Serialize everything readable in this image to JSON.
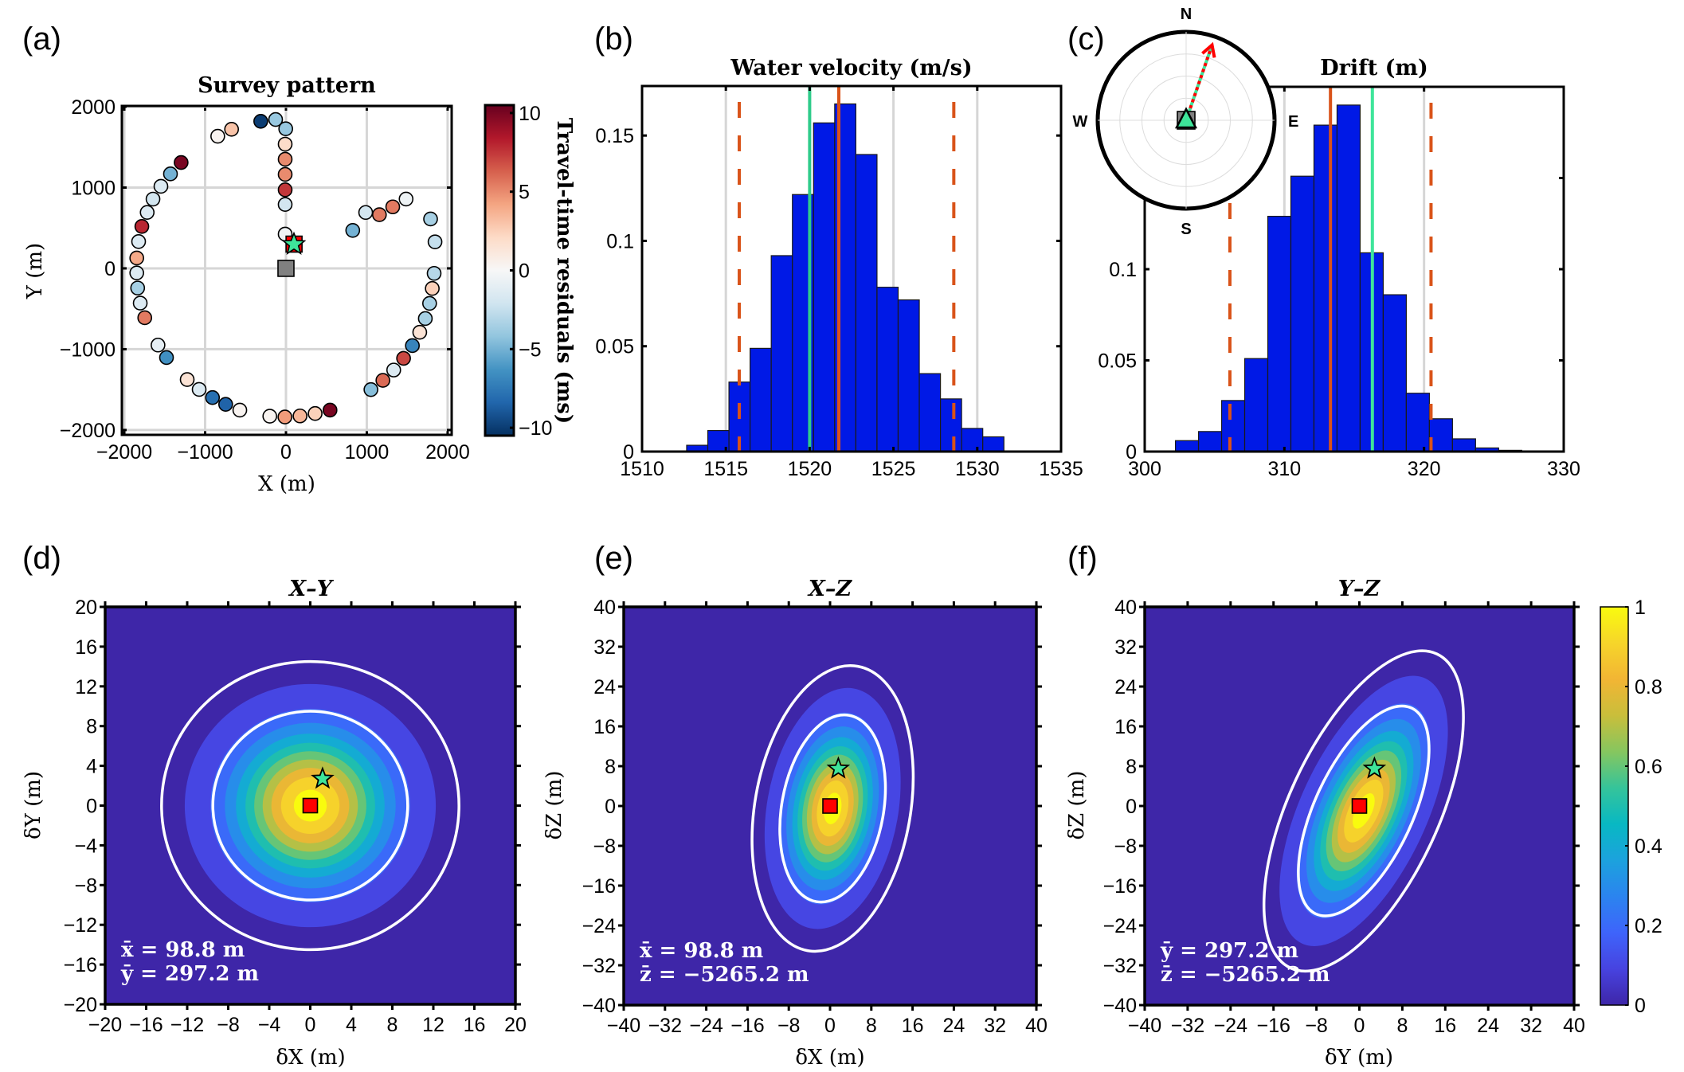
{
  "chart_data": [
    {
      "id": "a",
      "panel_label": "(a)",
      "type": "scatter",
      "title": "Survey pattern",
      "xlabel": "X (m)",
      "ylabel": "Y (m)",
      "xlim": [
        -2030,
        2050
      ],
      "ylim": [
        -2060,
        2010
      ],
      "xticks": [
        -2000,
        -1000,
        0,
        1000,
        2000
      ],
      "xtick_labels": [
        "−2000",
        "−1000",
        "0",
        "1000",
        "2000"
      ],
      "yticks": [
        -2000,
        -1000,
        0,
        1000,
        2000
      ],
      "ytick_labels": [
        "−2000",
        "−1000",
        "0",
        "1000",
        "2000"
      ],
      "grid": true,
      "colorbar": {
        "label": "Travel-time residuals (ms)",
        "range": [
          -10.5,
          10.5
        ],
        "ticks": [
          -10,
          -5,
          0,
          5,
          10
        ],
        "tick_labels": [
          "−10",
          "−5",
          "0",
          "5",
          "10"
        ],
        "colormap": "RdBu_r",
        "stops": [
          "#053061",
          "#2166ac",
          "#4393c3",
          "#92c5de",
          "#d1e5f0",
          "#f7f7f7",
          "#fddbc7",
          "#f4a582",
          "#d6604d",
          "#b2182b",
          "#67001f"
        ]
      },
      "stations": [
        {
          "x": -312,
          "y": 1820,
          "residual": -10
        },
        {
          "x": -128,
          "y": 1842,
          "residual": -4
        },
        {
          "x": -3,
          "y": 1727,
          "residual": -4
        },
        {
          "x": -10,
          "y": 1537,
          "residual": 2
        },
        {
          "x": -10,
          "y": 1350,
          "residual": 5
        },
        {
          "x": -10,
          "y": 1163,
          "residual": 5
        },
        {
          "x": -10,
          "y": 972,
          "residual": 7.5
        },
        {
          "x": -10,
          "y": 791,
          "residual": -2
        },
        {
          "x": -10,
          "y": 424,
          "residual": -0.5
        },
        {
          "x": -844,
          "y": 1635,
          "residual": 0.3
        },
        {
          "x": -673,
          "y": 1721,
          "residual": 3
        },
        {
          "x": -1297,
          "y": 1310,
          "residual": 10
        },
        {
          "x": -1429,
          "y": 1169,
          "residual": -5
        },
        {
          "x": -1547,
          "y": 1015,
          "residual": -1.5
        },
        {
          "x": -1645,
          "y": 857,
          "residual": -2
        },
        {
          "x": -1717,
          "y": 693,
          "residual": -1.5
        },
        {
          "x": -1783,
          "y": 519,
          "residual": 8
        },
        {
          "x": -1823,
          "y": 332,
          "residual": -1.5
        },
        {
          "x": -1846,
          "y": 128,
          "residual": 4
        },
        {
          "x": -1846,
          "y": -56,
          "residual": -1.5
        },
        {
          "x": -1835,
          "y": -243,
          "residual": -3.5
        },
        {
          "x": -1803,
          "y": -430,
          "residual": -1.5
        },
        {
          "x": -1747,
          "y": -611,
          "residual": 5.5
        },
        {
          "x": -1583,
          "y": -949,
          "residual": -1
        },
        {
          "x": -1478,
          "y": -1103,
          "residual": -6.5
        },
        {
          "x": -1222,
          "y": -1376,
          "residual": 1.5
        },
        {
          "x": -1074,
          "y": -1498,
          "residual": -1.5
        },
        {
          "x": -909,
          "y": -1599,
          "residual": -8
        },
        {
          "x": -746,
          "y": -1682,
          "residual": -8.5
        },
        {
          "x": -571,
          "y": -1754,
          "residual": 0.3
        },
        {
          "x": -200,
          "y": -1829,
          "residual": 0.3
        },
        {
          "x": -13,
          "y": -1839,
          "residual": 4.5
        },
        {
          "x": 174,
          "y": -1826,
          "residual": 3.5
        },
        {
          "x": 361,
          "y": -1796,
          "residual": 2.5
        },
        {
          "x": 545,
          "y": -1754,
          "residual": 10
        },
        {
          "x": 1051,
          "y": -1500,
          "residual": -4.5
        },
        {
          "x": 1199,
          "y": -1386,
          "residual": 6
        },
        {
          "x": 1333,
          "y": -1258,
          "residual": -1.5
        },
        {
          "x": 1455,
          "y": -1113,
          "residual": 7
        },
        {
          "x": 1564,
          "y": -956,
          "residual": -7
        },
        {
          "x": 1655,
          "y": -791,
          "residual": 1.5
        },
        {
          "x": 1724,
          "y": -621,
          "residual": -3.5
        },
        {
          "x": 1777,
          "y": -433,
          "residual": -3.5
        },
        {
          "x": 1810,
          "y": -249,
          "residual": 2.5
        },
        {
          "x": 1833,
          "y": -62,
          "residual": -3
        },
        {
          "x": 1844,
          "y": 328,
          "residual": -2.5
        },
        {
          "x": 1789,
          "y": 611,
          "residual": -3.5
        },
        {
          "x": 826,
          "y": 470,
          "residual": -5
        },
        {
          "x": 986,
          "y": 692,
          "residual": -2
        },
        {
          "x": 1156,
          "y": 664,
          "residual": 5.5
        },
        {
          "x": 1321,
          "y": 761,
          "residual": 5.5
        },
        {
          "x": 1486,
          "y": 858,
          "residual": -0.5
        }
      ],
      "markers": [
        {
          "kind": "square",
          "name": "reference-position",
          "x": 0,
          "y": 0,
          "color": "#808080"
        },
        {
          "kind": "square",
          "name": "estimated-position",
          "x": 100,
          "y": 300,
          "color": "#ff0000"
        },
        {
          "kind": "star",
          "name": "true-position",
          "x": 99,
          "y": 297,
          "color": "#3ee59a"
        }
      ]
    },
    {
      "id": "b",
      "panel_label": "(b)",
      "type": "bar",
      "title": "Water velocity (m/s)",
      "xlim": [
        1510,
        1535
      ],
      "ylim": [
        0,
        0.1735
      ],
      "xticks": [
        1510,
        1515,
        1520,
        1525,
        1530,
        1535
      ],
      "xtick_labels": [
        "1510",
        "1515",
        "1520",
        "1525",
        "1530",
        "1535"
      ],
      "yticks": [
        0,
        0.05,
        0.1,
        0.15
      ],
      "ytick_labels": [
        "0",
        "0.05",
        "0.1",
        "0.15"
      ],
      "grid_x": [
        1515,
        1520,
        1525,
        1530
      ],
      "bin_start": 1512.66,
      "bin_width": 1.262,
      "values": [
        0.003,
        0.01,
        0.033,
        0.049,
        0.093,
        0.122,
        0.156,
        0.165,
        0.141,
        0.078,
        0.072,
        0.037,
        0.025,
        0.011,
        0.007
      ],
      "bar_color": "#0019e6",
      "lines": [
        {
          "name": "true-value-line",
          "x": 1520.0,
          "color": "#2ecc8a",
          "style": "solid"
        },
        {
          "name": "mean-line",
          "x": 1521.74,
          "color": "#d95319",
          "style": "solid"
        },
        {
          "name": "lower-bound-line",
          "x": 1515.8,
          "color": "#d95319",
          "style": "dashed"
        },
        {
          "name": "upper-bound-line",
          "x": 1528.6,
          "color": "#d95319",
          "style": "dashed"
        }
      ]
    },
    {
      "id": "c",
      "panel_label": "(c)",
      "type": "bar",
      "title": "Drift (m)",
      "xlim": [
        300,
        330
      ],
      "ylim": [
        0,
        0.2
      ],
      "xticks": [
        300,
        310,
        320,
        330
      ],
      "xtick_labels": [
        "300",
        "310",
        "320",
        "330"
      ],
      "yticks": [
        0,
        0.05,
        0.1,
        0.15
      ],
      "ytick_labels": [
        "0",
        "0.05",
        "0.1",
        ""
      ],
      "grid_x": [
        310,
        320
      ],
      "bin_start": 302.2,
      "bin_width": 1.653,
      "values": [
        0.006,
        0.011,
        0.028,
        0.051,
        0.129,
        0.151,
        0.179,
        0.19,
        0.109,
        0.086,
        0.032,
        0.018,
        0.007,
        0.002,
        0.0007
      ],
      "bar_color": "#0019e6",
      "lines": [
        {
          "name": "mean-line",
          "x": 313.3,
          "color": "#d95319",
          "style": "solid"
        },
        {
          "name": "true-value-line",
          "x": 316.3,
          "color": "#3ee59a",
          "style": "solid"
        },
        {
          "name": "lower-bound-line",
          "x": 306.1,
          "color": "#d95319",
          "style": "dashed"
        },
        {
          "name": "upper-bound-line",
          "x": 320.5,
          "color": "#d95319",
          "style": "dashed"
        }
      ],
      "compass": {
        "labels": {
          "N": "N",
          "S": "S",
          "E": "E",
          "W": "W"
        },
        "drift_azimuth_deg": 19,
        "arrow_colors": [
          "#ff0000",
          "#3ee59a"
        ]
      }
    },
    {
      "id": "d",
      "panel_label": "(d)",
      "type": "heatmap",
      "title": "X–Y",
      "xlabel": "δX (m)",
      "ylabel": "δY (m)",
      "xlim": [
        -20,
        20
      ],
      "ylim": [
        -20,
        20
      ],
      "ticks": [
        -20,
        -16,
        -12,
        -8,
        -4,
        0,
        4,
        8,
        12,
        16,
        20
      ],
      "tick_labels": [
        "−20",
        "−16",
        "−12",
        "−8",
        "−4",
        "0",
        "4",
        "8",
        "12",
        "16",
        "20"
      ],
      "ellipse": {
        "sx": 5.0,
        "sy": 5.0,
        "rotation_deg": 0
      },
      "contour_radii_sigma": [
        1.9,
        2.9
      ],
      "star": {
        "x": 1.2,
        "y": 2.7
      },
      "square": {
        "x": 0,
        "y": 0
      },
      "stats": [
        "x̄ = 98.8 m",
        "ȳ = 297.2 m"
      ]
    },
    {
      "id": "e",
      "panel_label": "(e)",
      "type": "heatmap",
      "title": "X–Z",
      "xlabel": "δX (m)",
      "ylabel": "δZ (m)",
      "xlim": [
        -40,
        40
      ],
      "ylim": [
        -40,
        40
      ],
      "ticks": [
        -40,
        -32,
        -24,
        -16,
        -8,
        0,
        8,
        16,
        24,
        32,
        40
      ],
      "tick_labels": [
        "−40",
        "−32",
        "−24",
        "−16",
        "−8",
        "0",
        "8",
        "16",
        "24",
        "32",
        "40"
      ],
      "ellipse": {
        "sx": 5.2,
        "sy": 10.0,
        "rotation_deg": -10,
        "cx": 0.5,
        "cy": -0.5
      },
      "contour_radii_sigma": [
        1.9,
        2.9
      ],
      "star": {
        "x": 1.6,
        "y": 7.5
      },
      "square": {
        "x": 0,
        "y": 0
      },
      "stats": [
        "x̄ = 98.8 m",
        "z̄ = −5265.2 m"
      ]
    },
    {
      "id": "f",
      "panel_label": "(f)",
      "type": "heatmap",
      "title": "Y–Z",
      "xlabel": "δY (m)",
      "ylabel": "δZ (m)",
      "xlim": [
        -40,
        40
      ],
      "ylim": [
        -40,
        40
      ],
      "ticks": [
        -40,
        -32,
        -24,
        -16,
        -8,
        0,
        8,
        16,
        24,
        32,
        40
      ],
      "tick_labels": [
        "−40",
        "−32",
        "−24",
        "−16",
        "−8",
        "0",
        "8",
        "16",
        "24",
        "32",
        "40"
      ],
      "ellipse": {
        "sx": 4.8,
        "sy": 12.0,
        "rotation_deg": -25,
        "cx": 0.8,
        "cy": -1.0
      },
      "contour_radii_sigma": [
        1.9,
        2.9
      ],
      "star": {
        "x": 2.8,
        "y": 7.5
      },
      "square": {
        "x": 0,
        "y": 0
      },
      "stats": [
        "ȳ = 297.2 m",
        "z̄ = −5265.2 m"
      ],
      "colorbar": {
        "range": [
          0,
          1
        ],
        "ticks": [
          0,
          0.2,
          0.4,
          0.6,
          0.8,
          1
        ],
        "tick_labels": [
          "0",
          "0.2",
          "0.4",
          "0.6",
          "0.8",
          "1"
        ],
        "colormap": "parula",
        "stops": [
          "#3e26a8",
          "#4743e0",
          "#3e64fb",
          "#2b84ef",
          "#1ca2dd",
          "#08b8c3",
          "#35c49a",
          "#86c65f",
          "#c9be3b",
          "#f2b534",
          "#f6d52a",
          "#f9fb0e"
        ]
      }
    }
  ]
}
